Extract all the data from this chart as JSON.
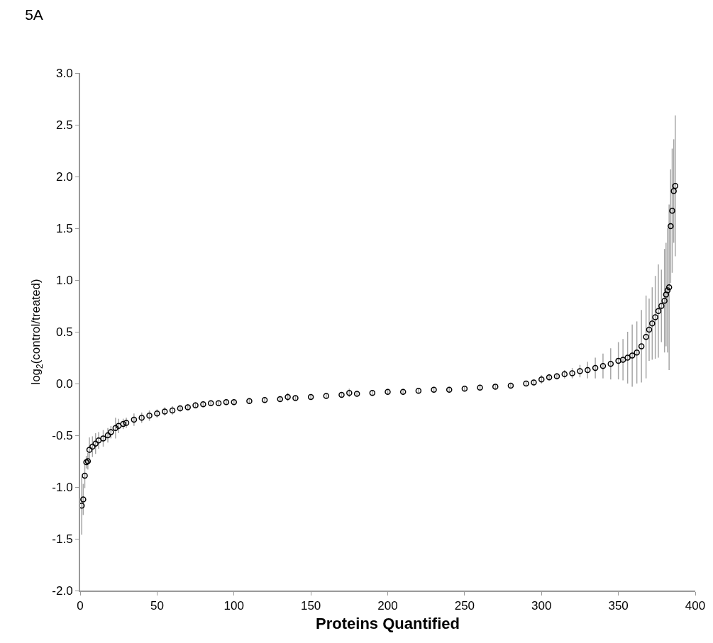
{
  "chart_data": {
    "type": "scatter",
    "title": "5A",
    "xlabel": "Proteins Quantified",
    "ylabel": "log$_{2}$(control/treated)",
    "x": [
      1,
      2,
      3,
      4,
      5,
      6,
      8,
      10,
      12,
      15,
      18,
      20,
      23,
      25,
      28,
      30,
      35,
      40,
      45,
      50,
      55,
      60,
      65,
      70,
      75,
      80,
      85,
      90,
      95,
      100,
      110,
      120,
      130,
      135,
      140,
      150,
      160,
      170,
      175,
      180,
      190,
      200,
      210,
      220,
      230,
      240,
      250,
      260,
      270,
      280,
      290,
      295,
      300,
      305,
      310,
      315,
      320,
      325,
      330,
      335,
      340,
      345,
      350,
      353,
      356,
      359,
      362,
      365,
      368,
      370,
      372,
      374,
      376,
      378,
      380,
      381,
      382,
      383,
      384,
      385,
      386,
      387
    ],
    "series": [
      {
        "color": "#000000",
        "values": [
          -1.18,
          -1.12,
          -0.89,
          -0.76,
          -0.75,
          -0.64,
          -0.61,
          -0.58,
          -0.55,
          -0.53,
          -0.5,
          -0.47,
          -0.43,
          -0.41,
          -0.39,
          -0.38,
          -0.35,
          -0.33,
          -0.31,
          -0.29,
          -0.27,
          -0.26,
          -0.24,
          -0.23,
          -0.21,
          -0.2,
          -0.19,
          -0.19,
          -0.18,
          -0.18,
          -0.17,
          -0.16,
          -0.15,
          -0.13,
          -0.14,
          -0.13,
          -0.12,
          -0.11,
          -0.09,
          -0.1,
          -0.09,
          -0.08,
          -0.08,
          -0.07,
          -0.06,
          -0.06,
          -0.05,
          -0.04,
          -0.03,
          -0.02,
          0,
          0.01,
          0.04,
          0.06,
          0.07,
          0.09,
          0.1,
          0.12,
          0.13,
          0.15,
          0.17,
          0.19,
          0.22,
          0.23,
          0.25,
          0.27,
          0.3,
          0.36,
          0.45,
          0.52,
          0.58,
          0.64,
          0.7,
          0.75,
          0.8,
          0.86,
          0.9,
          0.93,
          1.52,
          1.67,
          1.86,
          1.91
        ],
        "errors": [
          0.28,
          0.15,
          0.12,
          0.06,
          0.08,
          0.12,
          0.1,
          0.1,
          0.08,
          0.08,
          0.07,
          0.06,
          0.1,
          0.07,
          0.05,
          0.05,
          0.06,
          0.05,
          0.05,
          0.04,
          0.04,
          0.04,
          0.03,
          0.03,
          0.03,
          0.02,
          0.02,
          0.02,
          0.02,
          0.02,
          0.02,
          0.02,
          0.02,
          0.04,
          0.02,
          0.02,
          0.02,
          0.02,
          0.04,
          0.02,
          0.02,
          0.02,
          0.02,
          0.02,
          0.02,
          0.02,
          0.02,
          0.02,
          0.02,
          0.02,
          0.02,
          0.02,
          0.04,
          0.03,
          0.03,
          0.04,
          0.05,
          0.06,
          0.08,
          0.1,
          0.12,
          0.15,
          0.18,
          0.2,
          0.25,
          0.3,
          0.3,
          0.35,
          0.4,
          0.3,
          0.35,
          0.4,
          0.45,
          0.35,
          0.5,
          0.5,
          0.6,
          0.8,
          0.55,
          0.6,
          0.5,
          0.68
        ]
      }
    ],
    "xlim": [
      0,
      400
    ],
    "xticks": [
      0,
      50,
      100,
      150,
      200,
      250,
      300,
      350,
      400
    ],
    "ylim": [
      -2,
      3
    ],
    "yticks": [
      {
        "value": -2,
        "label": "-2.0"
      },
      {
        "value": -1.5,
        "label": "-1.5"
      },
      {
        "value": -1,
        "label": "-1.0"
      },
      {
        "value": -0.5,
        "label": "-0.5"
      },
      {
        "value": 0,
        "label": "0.0"
      },
      {
        "value": 0.5,
        "label": "0.5"
      },
      {
        "value": 1,
        "label": "1.0"
      },
      {
        "value": 1.5,
        "label": "1.5"
      },
      {
        "value": 2,
        "label": "2.0"
      },
      {
        "value": 2.5,
        "label": "2.5"
      },
      {
        "value": 3,
        "label": "3.0"
      }
    ],
    "marker": "circle"
  }
}
